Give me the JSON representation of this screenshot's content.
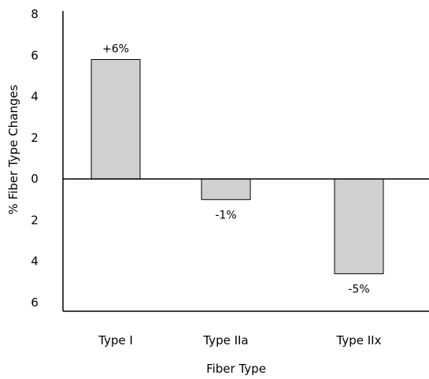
{
  "chart_data": {
    "type": "bar",
    "title": "",
    "xlabel": "Fiber Type",
    "ylabel": "% Fiber Type Changes",
    "categories": [
      "Type I",
      "Type IIa",
      "Type IIx"
    ],
    "values": [
      5.8,
      -1.0,
      -4.6
    ],
    "data_labels": [
      "+6%",
      "-1%",
      "-5%"
    ],
    "ylim": [
      -6,
      8
    ],
    "ytick_values": [
      -6,
      -4,
      -2,
      0,
      2,
      4,
      6,
      8
    ],
    "ytick_labels": [
      "6",
      "4",
      "2",
      "0",
      "2",
      "4",
      "6",
      "8"
    ],
    "grid": false,
    "legend": "none",
    "bar_color": "#d0d0d0",
    "bar_edge_color": "#000000"
  }
}
